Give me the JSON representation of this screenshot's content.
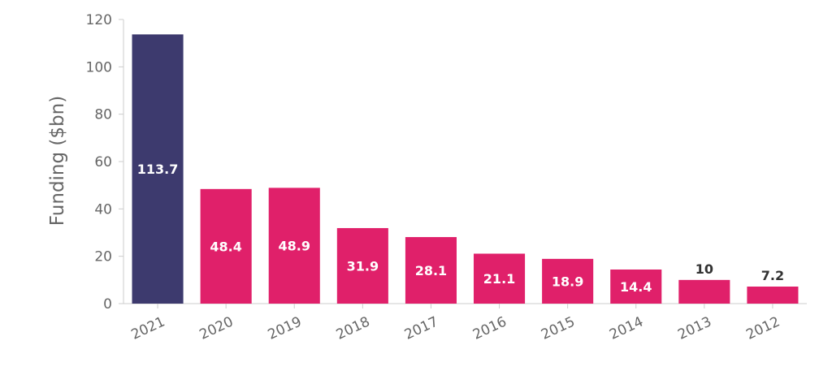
{
  "chart_data": {
    "type": "bar",
    "title": "",
    "xlabel": "",
    "ylabel": "Funding ($bn)",
    "ylim": [
      0,
      120
    ],
    "yticks": [
      0,
      20,
      40,
      60,
      80,
      100,
      120
    ],
    "grid": false,
    "legend": "none",
    "categories": [
      "2021",
      "2020",
      "2019",
      "2018",
      "2017",
      "2016",
      "2015",
      "2014",
      "2013",
      "2012"
    ],
    "values": [
      113.7,
      48.4,
      48.9,
      31.9,
      28.1,
      21.1,
      18.9,
      14.4,
      10,
      7.2
    ],
    "value_labels": [
      "113.7",
      "48.4",
      "48.9",
      "31.9",
      "28.1",
      "21.1",
      "18.9",
      "14.4",
      "10",
      "7.2"
    ],
    "highlight_category": "2021",
    "colors": {
      "highlight": "#3d3a6e",
      "default": "#e0206a",
      "axis": "#cccccc",
      "text": "#666666"
    }
  }
}
